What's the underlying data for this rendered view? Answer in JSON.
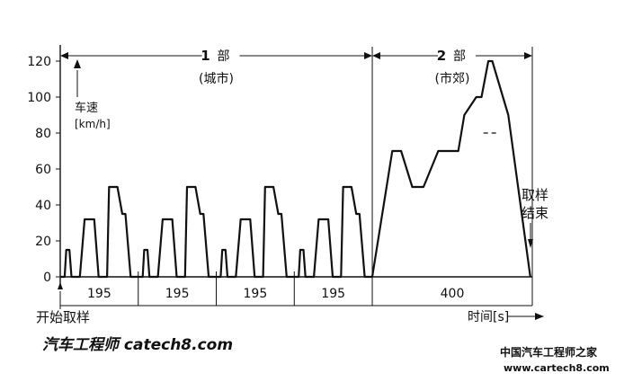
{
  "chart_data": {
    "type": "line",
    "ylabel_line1": "车速",
    "ylabel_line2": "[km/h]",
    "xlabel": "时间[s]",
    "ylim": [
      0,
      120
    ],
    "yticks": [
      "0",
      "20",
      "40",
      "60",
      "80",
      "100",
      "120"
    ],
    "x_total_seconds": 1180,
    "phases": [
      {
        "num": "1",
        "name": "部",
        "sub": "(城市)"
      },
      {
        "num": "2",
        "name": "部",
        "sub": "(市郊)"
      }
    ],
    "segment_labels": [
      "195",
      "195",
      "195",
      "195",
      "400"
    ],
    "start_label": "开始取样",
    "end_label_line1": "取样",
    "end_label_line2": "结束",
    "urban_cycle": {
      "t": [
        0,
        11,
        15,
        23,
        28,
        49,
        61,
        85,
        96,
        117,
        122,
        143,
        155,
        163,
        176,
        188,
        195
      ],
      "v": [
        0,
        0,
        15,
        15,
        0,
        0,
        32,
        32,
        0,
        0,
        50,
        50,
        35,
        35,
        0,
        0,
        0
      ]
    },
    "suburban": {
      "t": [
        780,
        830,
        852,
        880,
        908,
        945,
        962,
        995,
        1010,
        1040,
        1053,
        1070,
        1080,
        1120,
        1175
      ],
      "v": [
        0,
        70,
        70,
        50,
        50,
        70,
        70,
        70,
        90,
        100,
        100,
        120,
        120,
        90,
        0
      ]
    },
    "dashed_segment": {
      "t": [
        1058,
        1090
      ],
      "v": [
        80,
        80
      ]
    }
  },
  "watermarks": {
    "left": "汽车工程师 catech8.com",
    "right_line1": "中国汽车工程师之家",
    "right_line2": "www.cartech8.com"
  }
}
